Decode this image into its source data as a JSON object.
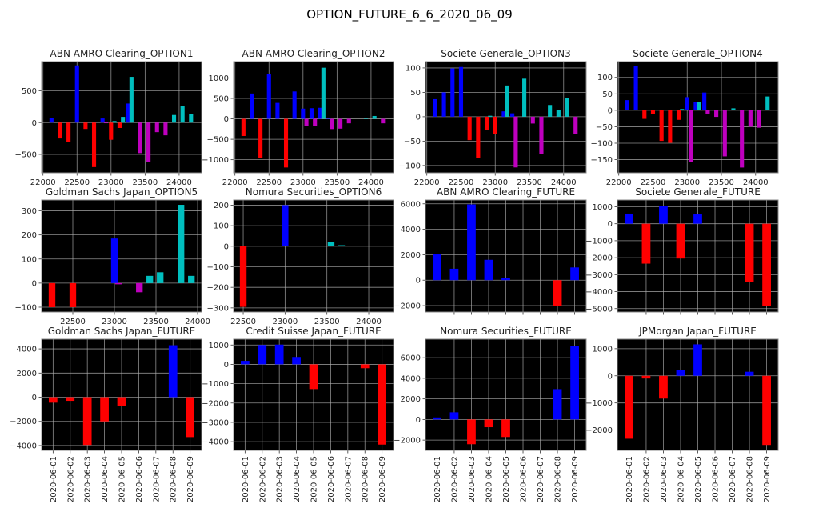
{
  "figure": {
    "suptitle": "OPTION_FUTURE_6_6_2020_06_09"
  },
  "colors": {
    "call_pos": "#0000ff",
    "call_neg": "#ff0000",
    "put_pos": "#00bfbf",
    "put_neg": "#bf00bf",
    "future_pos": "#0000ff",
    "future_neg": "#ff0000",
    "background": "#000000",
    "grid": "#b0b0b0"
  },
  "chart_data": [
    {
      "type": "bar",
      "title": "ABN AMRO Clearing_OPTION1",
      "kind": "option",
      "xlim": [
        21980,
        24330
      ],
      "ylim": [
        -790,
        960
      ],
      "xticks": [
        22000,
        22500,
        23000,
        23500,
        24000
      ],
      "yticks": [
        -500,
        0,
        500
      ],
      "put_offset": 50,
      "bar_width": 60,
      "calls": [
        [
          22125,
          75
        ],
        [
          22250,
          -250
        ],
        [
          22375,
          -310
        ],
        [
          22500,
          900
        ],
        [
          22625,
          -100
        ],
        [
          22750,
          -700
        ],
        [
          22875,
          65
        ],
        [
          23000,
          -270
        ],
        [
          23125,
          -85
        ],
        [
          23250,
          300
        ]
      ],
      "puts": [
        [
          22875,
          -10
        ],
        [
          23000,
          25
        ],
        [
          23125,
          90
        ],
        [
          23250,
          720
        ],
        [
          23375,
          -480
        ],
        [
          23500,
          -620
        ],
        [
          23625,
          -150
        ],
        [
          23750,
          -200
        ],
        [
          23875,
          120
        ],
        [
          24000,
          255
        ],
        [
          24125,
          140
        ]
      ]
    },
    {
      "type": "bar",
      "title": "ABN AMRO Clearing_OPTION2",
      "kind": "option",
      "xlim": [
        21980,
        24330
      ],
      "ylim": [
        -1320,
        1400
      ],
      "xticks": [
        22000,
        22500,
        23000,
        23500,
        24000
      ],
      "yticks": [
        -1000,
        -500,
        0,
        500,
        1000
      ],
      "put_offset": 50,
      "bar_width": 60,
      "calls": [
        [
          22125,
          -420
        ],
        [
          22250,
          620
        ],
        [
          22375,
          -960
        ],
        [
          22500,
          1100
        ],
        [
          22625,
          390
        ],
        [
          22750,
          -1190
        ],
        [
          22875,
          670
        ],
        [
          23000,
          250
        ],
        [
          23125,
          260
        ],
        [
          23250,
          270
        ],
        [
          23375,
          20
        ]
      ],
      "puts": [
        [
          23000,
          -170
        ],
        [
          23125,
          -170
        ],
        [
          23250,
          1250
        ],
        [
          23375,
          -250
        ],
        [
          23500,
          -240
        ],
        [
          23625,
          -110
        ],
        [
          23875,
          20
        ],
        [
          24000,
          70
        ],
        [
          24125,
          -110
        ]
      ]
    },
    {
      "type": "bar",
      "title": "Societe Generale_OPTION3",
      "kind": "option",
      "xlim": [
        21980,
        24330
      ],
      "ylim": [
        -115,
        113
      ],
      "xticks": [
        22000,
        22500,
        23000,
        23500,
        24000
      ],
      "yticks": [
        -100,
        -50,
        0,
        50,
        100
      ],
      "put_offset": 50,
      "bar_width": 60,
      "calls": [
        [
          22125,
          36
        ],
        [
          22250,
          50
        ],
        [
          22375,
          99
        ],
        [
          22500,
          102
        ],
        [
          22625,
          -48
        ],
        [
          22750,
          -84
        ],
        [
          22875,
          -27
        ],
        [
          23000,
          -35
        ],
        [
          23125,
          11
        ],
        [
          23250,
          7
        ]
      ],
      "puts": [
        [
          22875,
          2
        ],
        [
          23125,
          64
        ],
        [
          23250,
          -104
        ],
        [
          23375,
          78
        ],
        [
          23500,
          -14
        ],
        [
          23625,
          -77
        ],
        [
          23750,
          24
        ],
        [
          23875,
          14
        ],
        [
          24000,
          38
        ],
        [
          24125,
          -36
        ]
      ]
    },
    {
      "type": "bar",
      "title": "Societe Generale_OPTION4",
      "kind": "option",
      "xlim": [
        21980,
        24330
      ],
      "ylim": [
        -190,
        148
      ],
      "xticks": [
        22000,
        22500,
        23000,
        23500,
        24000
      ],
      "yticks": [
        -150,
        -100,
        -50,
        0,
        50,
        100
      ],
      "put_offset": 50,
      "bar_width": 60,
      "calls": [
        [
          22125,
          31
        ],
        [
          22250,
          134
        ],
        [
          22375,
          -26
        ],
        [
          22500,
          -12
        ],
        [
          22625,
          -93
        ],
        [
          22750,
          -99
        ],
        [
          22875,
          -29
        ],
        [
          23000,
          40
        ],
        [
          23125,
          25
        ],
        [
          23250,
          54
        ]
      ],
      "puts": [
        [
          22875,
          4
        ],
        [
          23000,
          -156
        ],
        [
          23125,
          25
        ],
        [
          23250,
          -10
        ],
        [
          23375,
          -20
        ],
        [
          23500,
          -140
        ],
        [
          23625,
          6
        ],
        [
          23750,
          -174
        ],
        [
          23875,
          -50
        ],
        [
          24000,
          -53
        ],
        [
          24125,
          42
        ]
      ]
    },
    {
      "type": "bar",
      "title": "Goldman Sachs Japan_OPTION5",
      "kind": "option",
      "xlim": [
        22125,
        24048
      ],
      "ylim": [
        -120,
        345
      ],
      "xticks": [
        22500,
        23000,
        23500,
        24000
      ],
      "yticks": [
        -100,
        0,
        100,
        200,
        300
      ],
      "put_offset": 50,
      "bar_width": 80,
      "calls": [
        [
          22250,
          -100
        ],
        [
          22500,
          -100
        ],
        [
          23000,
          185
        ]
      ],
      "puts": [
        [
          23000,
          -5
        ],
        [
          23250,
          -38
        ],
        [
          23375,
          30
        ],
        [
          23500,
          45
        ],
        [
          23750,
          325
        ],
        [
          23875,
          30
        ]
      ]
    },
    {
      "type": "bar",
      "title": "Nomura Securities_OPTION6",
      "kind": "option",
      "xlim": [
        22385,
        24296
      ],
      "ylim": [
        -320,
        225
      ],
      "xticks": [
        22500,
        23000,
        23500,
        24000
      ],
      "yticks": [
        -300,
        -200,
        -100,
        0,
        100,
        200
      ],
      "put_offset": 50,
      "bar_width": 80,
      "calls": [
        [
          22500,
          -295
        ],
        [
          23000,
          200
        ]
      ],
      "puts": [
        [
          23500,
          20
        ],
        [
          23625,
          5
        ]
      ]
    },
    {
      "type": "bar",
      "title": "ABN AMRO Clearing_FUTURE",
      "kind": "future",
      "ylim": [
        -2500,
        6300
      ],
      "yticks": [
        -2000,
        0,
        2000,
        4000,
        6000
      ],
      "show_xlabels": false,
      "categories": [
        "2020-06-01",
        "2020-06-02",
        "2020-06-03",
        "2020-06-04",
        "2020-06-05",
        "2020-06-06",
        "2020-06-07",
        "2020-06-08",
        "2020-06-09"
      ],
      "values": [
        2050,
        900,
        5950,
        1600,
        200,
        0,
        0,
        -2000,
        1000
      ]
    },
    {
      "type": "bar",
      "title": "Societe Generale_FUTURE",
      "kind": "future",
      "ylim": [
        -5200,
        1400
      ],
      "yticks": [
        -5000,
        -4000,
        -3000,
        -2000,
        -1000,
        0,
        1000
      ],
      "show_xlabels": false,
      "categories": [
        "2020-06-01",
        "2020-06-02",
        "2020-06-03",
        "2020-06-04",
        "2020-06-05",
        "2020-06-06",
        "2020-06-07",
        "2020-06-08",
        "2020-06-09"
      ],
      "values": [
        600,
        -2350,
        1050,
        -2050,
        550,
        0,
        0,
        -3450,
        -4850
      ]
    },
    {
      "type": "bar",
      "title": "Goldman Sachs Japan_FUTURE",
      "kind": "future",
      "ylim": [
        -4400,
        4800
      ],
      "yticks": [
        -4000,
        -2000,
        0,
        2000,
        4000
      ],
      "show_xlabels": true,
      "categories": [
        "2020-06-01",
        "2020-06-02",
        "2020-06-03",
        "2020-06-04",
        "2020-06-05",
        "2020-06-06",
        "2020-06-07",
        "2020-06-08",
        "2020-06-09"
      ],
      "values": [
        -450,
        -300,
        -3950,
        -2000,
        -750,
        0,
        0,
        4300,
        -3300
      ]
    },
    {
      "type": "bar",
      "title": "Credit Suisse Japan_FUTURE",
      "kind": "future",
      "ylim": [
        -4450,
        1300
      ],
      "yticks": [
        -4000,
        -3000,
        -2000,
        -1000,
        0,
        1000
      ],
      "show_xlabels": true,
      "categories": [
        "2020-06-01",
        "2020-06-02",
        "2020-06-03",
        "2020-06-04",
        "2020-06-05",
        "2020-06-06",
        "2020-06-07",
        "2020-06-08",
        "2020-06-09"
      ],
      "values": [
        180,
        1000,
        1020,
        380,
        -1280,
        0,
        0,
        -200,
        -4150
      ]
    },
    {
      "type": "bar",
      "title": "Nomura Securities_FUTURE",
      "kind": "future",
      "ylim": [
        -3000,
        7800
      ],
      "yticks": [
        -2000,
        0,
        2000,
        4000,
        6000
      ],
      "show_xlabels": true,
      "categories": [
        "2020-06-01",
        "2020-06-02",
        "2020-06-03",
        "2020-06-04",
        "2020-06-05",
        "2020-06-06",
        "2020-06-07",
        "2020-06-08",
        "2020-06-09"
      ],
      "values": [
        200,
        700,
        -2400,
        -750,
        -1700,
        0,
        0,
        2950,
        7100
      ]
    },
    {
      "type": "bar",
      "title": "JPMorgan Japan_FUTURE",
      "kind": "future",
      "ylim": [
        -2750,
        1350
      ],
      "yticks": [
        -2000,
        -1000,
        0,
        1000
      ],
      "show_xlabels": true,
      "categories": [
        "2020-06-01",
        "2020-06-02",
        "2020-06-03",
        "2020-06-04",
        "2020-06-05",
        "2020-06-06",
        "2020-06-07",
        "2020-06-08",
        "2020-06-09"
      ],
      "values": [
        -2320,
        -100,
        -840,
        200,
        1160,
        0,
        0,
        150,
        -2550
      ]
    }
  ]
}
